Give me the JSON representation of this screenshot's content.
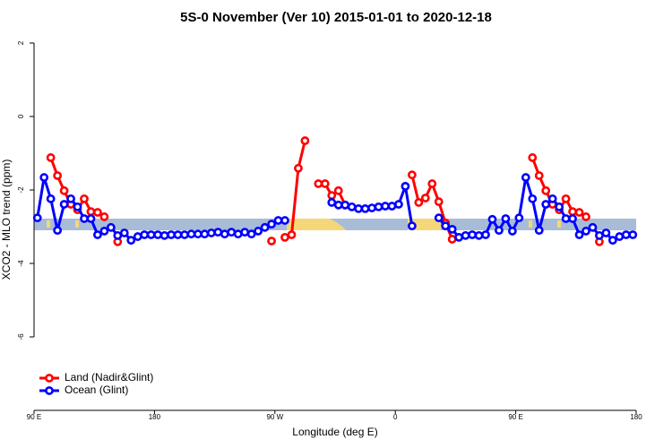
{
  "chart_data": {
    "type": "line",
    "title": "5S-0 November (Ver 10)   2015-01-01 to 2020-12-18",
    "x_label": "Longitude (deg E)",
    "y_label": "XCO2 - MLO trend (ppm)",
    "xlim": [
      90,
      540
    ],
    "ylim": [
      -8,
      2.2
    ],
    "xticks": [
      {
        "value": 90,
        "label": "90 E"
      },
      180,
      {
        "value": 270,
        "label": "90 W"
      },
      {
        "value": 360,
        "label": "0"
      },
      {
        "value": 450,
        "label": "90 E"
      },
      {
        "value": 540,
        "label": "180"
      }
    ],
    "yticks": [
      -6,
      -4,
      -2,
      0,
      2
    ],
    "grid": false,
    "legend": "bottom-left",
    "x": [
      92.5,
      97.5,
      102.5,
      107.5,
      112.5,
      117.5,
      122.5,
      127.5,
      132.5,
      137.5,
      142.5,
      147.5,
      152.5,
      157.5,
      162.5,
      167.5,
      172.5,
      177.5,
      182.5,
      187.5,
      192.5,
      197.5,
      202.5,
      207.5,
      212.5,
      217.5,
      222.5,
      227.5,
      232.5,
      237.5,
      242.5,
      247.5,
      252.5,
      257.5,
      262.5,
      267.5,
      272.5,
      277.5,
      282.5,
      287.5,
      292.5,
      297.5,
      302.5,
      307.5,
      312.5,
      317.5,
      322.5,
      327.5,
      332.5,
      337.5,
      342.5,
      347.5,
      352.5,
      357.5,
      362.5,
      367.5,
      372.5,
      377.5,
      382.5,
      387.5,
      392.5,
      397.5,
      402.5,
      407.5,
      412.5,
      417.5,
      422.5,
      427.5,
      432.5,
      437.5,
      442.5,
      447.5,
      452.5,
      457.5,
      462.5,
      467.5,
      472.5,
      477.5,
      482.5,
      487.5,
      492.5,
      497.5,
      502.5,
      507.5,
      512.5,
      517.5,
      522.5,
      527.5,
      532.5,
      537.5
    ],
    "series": [
      {
        "name": "Land (Nadir&Glint)",
        "color": "#ff0000",
        "values": [
          null,
          null,
          -1.12,
          -1.61,
          -2.02,
          -2.39,
          -2.54,
          -2.24,
          -2.59,
          -2.61,
          -2.73,
          null,
          -3.41,
          null,
          null,
          null,
          null,
          null,
          null,
          null,
          null,
          null,
          null,
          null,
          null,
          null,
          null,
          null,
          null,
          null,
          null,
          null,
          null,
          null,
          null,
          -3.39,
          null,
          -3.29,
          -3.22,
          -1.41,
          -0.66,
          null,
          -1.83,
          -1.83,
          -2.15,
          -2.02,
          -2.41,
          null,
          null,
          null,
          null,
          null,
          null,
          null,
          null,
          null,
          -1.59,
          -2.34,
          -2.22,
          -1.83,
          -2.32,
          -2.9,
          -3.34,
          null,
          null,
          null,
          null,
          null,
          null,
          null,
          null,
          null,
          null,
          null,
          -1.12,
          -1.61,
          -2.02,
          -2.39,
          -2.54,
          -2.24,
          -2.59,
          -2.61,
          -2.73,
          null,
          -3.41,
          null,
          null,
          null,
          null,
          null
        ]
      },
      {
        "name": "Ocean (Glint)",
        "color": "#0000ff",
        "values": [
          -2.76,
          -1.66,
          -2.24,
          -3.1,
          -2.39,
          -2.24,
          -2.46,
          -2.78,
          -2.78,
          -3.22,
          -3.12,
          -3.02,
          -3.24,
          -3.17,
          -3.37,
          -3.27,
          -3.22,
          -3.22,
          -3.22,
          -3.24,
          -3.22,
          -3.22,
          -3.22,
          -3.2,
          -3.2,
          -3.2,
          -3.17,
          -3.15,
          -3.2,
          -3.15,
          -3.2,
          -3.15,
          -3.2,
          -3.12,
          -3.02,
          -2.93,
          -2.83,
          -2.83,
          null,
          null,
          null,
          null,
          null,
          null,
          -2.34,
          -2.41,
          -2.41,
          -2.46,
          -2.51,
          -2.51,
          -2.49,
          -2.46,
          -2.44,
          -2.44,
          -2.39,
          -1.9,
          -2.98,
          null,
          null,
          null,
          -2.76,
          -2.98,
          -3.07,
          -3.29,
          -3.24,
          -3.22,
          -3.24,
          -3.22,
          -2.8,
          -3.1,
          -2.78,
          -3.12,
          -2.76,
          -1.66,
          -2.24,
          -3.1,
          -2.39,
          -2.24,
          -2.46,
          -2.78,
          -2.78,
          -3.22,
          -3.12,
          -3.02,
          -3.24,
          -3.17,
          -3.37,
          -3.27,
          -3.22,
          -3.22
        ]
      }
    ]
  }
}
